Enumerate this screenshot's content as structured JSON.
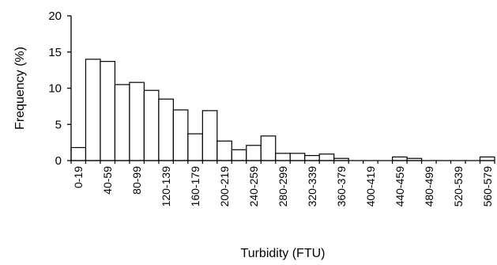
{
  "chart_data": {
    "type": "bar",
    "xlabel": "Turbidity (FTU)",
    "ylabel": "Frequency (%)",
    "ylim": [
      0,
      20
    ],
    "yticks": [
      0,
      5,
      10,
      15,
      20
    ],
    "grid": false,
    "categories": [
      "0-19",
      "20-39",
      "40-59",
      "60-79",
      "80-99",
      "100-119",
      "120-139",
      "140-159",
      "160-179",
      "180-199",
      "200-219",
      "220-239",
      "240-259",
      "260-279",
      "280-299",
      "300-319",
      "320-339",
      "340-359",
      "360-379",
      "380-399",
      "400-419",
      "420-439",
      "440-459",
      "460-479",
      "480-499",
      "500-519",
      "520-539",
      "540-559",
      "560-579"
    ],
    "shown_category_labels": [
      "0-19",
      "40-59",
      "80-99",
      "120-139",
      "160-179",
      "200-219",
      "240-259",
      "280-299",
      "320-339",
      "360-379",
      "400-419",
      "440-459",
      "480-499",
      "520-539",
      "560-579"
    ],
    "values": [
      1.8,
      14.0,
      13.7,
      10.5,
      10.8,
      9.7,
      8.5,
      7.0,
      3.7,
      6.9,
      2.7,
      1.5,
      2.1,
      3.4,
      1.0,
      1.0,
      0.7,
      0.9,
      0.3,
      0,
      0,
      0,
      0.5,
      0.3,
      0,
      0,
      0,
      0,
      0.5
    ],
    "colors": {
      "bar_fill": "#ffffff",
      "bar_stroke": "#000000",
      "axis": "#000000"
    }
  }
}
